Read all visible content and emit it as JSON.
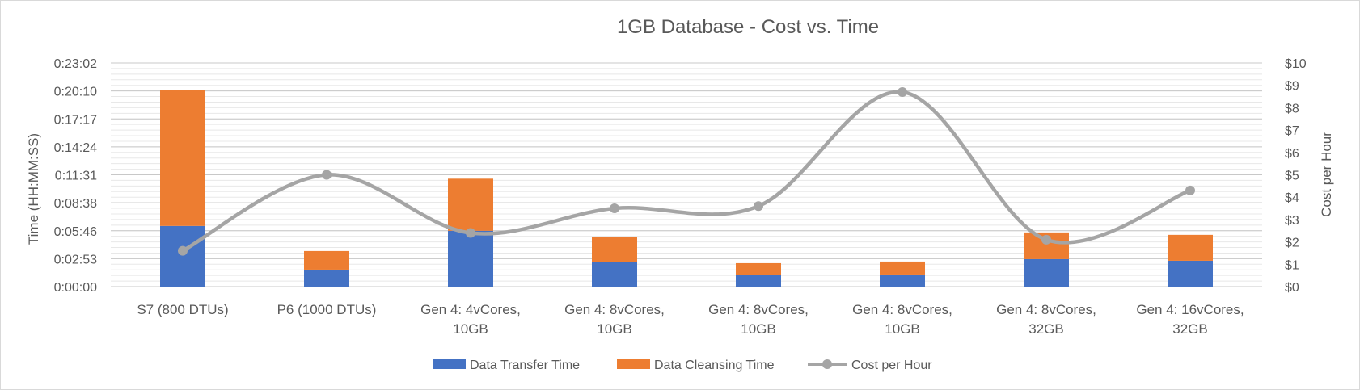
{
  "chart_data": {
    "type": "bar",
    "stacked": true,
    "title": "1GB Database - Cost vs. Time",
    "categories": [
      [
        "S7 (800 DTUs)"
      ],
      [
        "P6 (1000 DTUs)"
      ],
      [
        "Gen 4: 4vCores,",
        "10GB"
      ],
      [
        "Gen 4: 8vCores,",
        "10GB"
      ],
      [
        "Gen 4: 8vCores,",
        "10GB"
      ],
      [
        "Gen 4: 8vCores,",
        "10GB"
      ],
      [
        "Gen 4: 8vCores,",
        "32GB"
      ],
      [
        "Gen 4: 16vCores,",
        "32GB"
      ]
    ],
    "series": [
      {
        "name": "Data Transfer Time",
        "kind": "bar",
        "axis": "left",
        "color": "#4472c4",
        "values_seconds": [
          375,
          105,
          345,
          150,
          70,
          75,
          170,
          160
        ]
      },
      {
        "name": "Data Cleansing Time",
        "kind": "bar",
        "axis": "left",
        "color": "#ed7d31",
        "values_seconds": [
          840,
          115,
          322,
          157,
          75,
          80,
          165,
          160
        ]
      },
      {
        "name": "Cost per Hour",
        "kind": "line",
        "axis": "right",
        "color": "#a5a5a5",
        "values": [
          1.6,
          5.0,
          2.4,
          3.5,
          3.6,
          8.7,
          2.1,
          4.3
        ]
      }
    ],
    "ylabel": "Time (HH:MM:SS)",
    "y2label": "Cost per Hour",
    "ylim_seconds": [
      0,
      1382
    ],
    "yticks": [
      "0:00:00",
      "0:02:53",
      "0:05:46",
      "0:08:38",
      "0:11:31",
      "0:14:24",
      "0:17:17",
      "0:20:10",
      "0:23:02"
    ],
    "y2lim": [
      0,
      10
    ],
    "y2ticks": [
      "$0",
      "$1",
      "$2",
      "$3",
      "$4",
      "$5",
      "$6",
      "$7",
      "$8",
      "$9",
      "$10"
    ],
    "grid": true,
    "legend_position": "bottom"
  }
}
